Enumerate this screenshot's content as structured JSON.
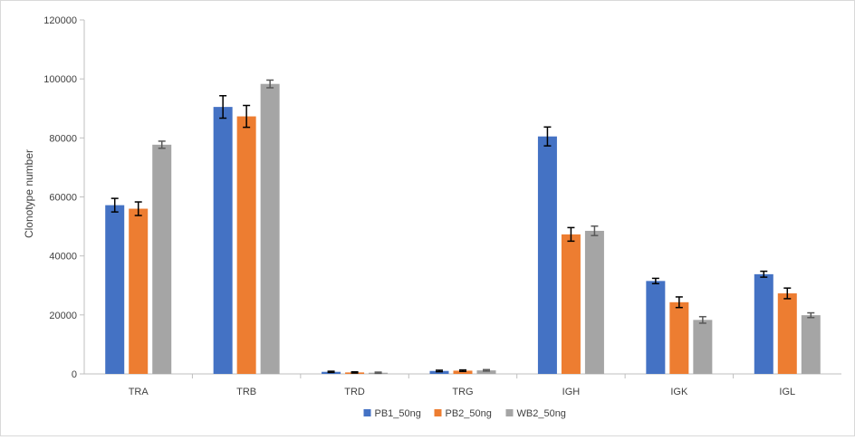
{
  "chart_data": {
    "type": "bar",
    "title": "",
    "xlabel": "",
    "ylabel": "Clonotype number",
    "ylim": [
      0,
      120000
    ],
    "yticks": [
      0,
      20000,
      40000,
      60000,
      80000,
      100000,
      120000
    ],
    "ytick_labels": [
      "0",
      "20000",
      "40000",
      "60000",
      "80000",
      "100000",
      "120000"
    ],
    "legend_position": "bottom",
    "grid": false,
    "categories": [
      "TRA",
      "TRB",
      "TRD",
      "TRG",
      "IGH",
      "IGK",
      "IGL"
    ],
    "series": [
      {
        "name": "PB1_50ng",
        "color": "#4472c4",
        "values": [
          57200,
          90500,
          700,
          1000,
          80500,
          31500,
          33800
        ],
        "errors": [
          2300,
          3800,
          200,
          250,
          3200,
          900,
          1000
        ]
      },
      {
        "name": "PB2_50ng",
        "color": "#ed7d31",
        "values": [
          56000,
          87300,
          500,
          1100,
          47300,
          24300,
          27300
        ],
        "errors": [
          2300,
          3700,
          200,
          250,
          2300,
          1800,
          1800
        ]
      },
      {
        "name": "WB2_50ng",
        "color": "#a5a5a5",
        "values": [
          77700,
          98300,
          400,
          1200,
          48500,
          18300,
          19900
        ],
        "errors": [
          1200,
          1300,
          200,
          250,
          1600,
          1100,
          800
        ]
      }
    ]
  }
}
